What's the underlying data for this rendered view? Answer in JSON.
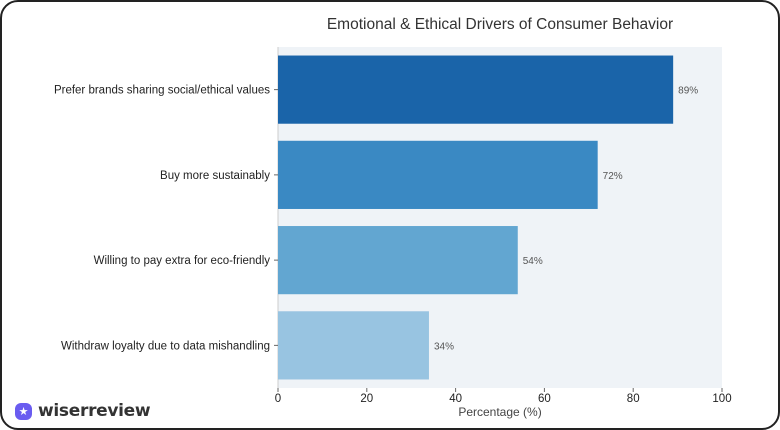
{
  "chart_data": {
    "type": "bar",
    "orientation": "horizontal",
    "title": "Emotional & Ethical Drivers of Consumer Behavior",
    "xlabel": "Percentage (%)",
    "ylabel": "",
    "xlim": [
      0,
      100
    ],
    "xticks": [
      "0",
      "20",
      "40",
      "60",
      "80",
      "100"
    ],
    "categories": [
      "Prefer brands sharing social/ethical values",
      "Buy more sustainably",
      "Willing to pay extra for eco-friendly",
      "Withdraw loyalty due to data mishandling"
    ],
    "values": [
      89,
      72,
      54,
      34
    ],
    "data_labels": [
      "89%",
      "72%",
      "54%",
      "34%"
    ],
    "colors": [
      "#1a64a9",
      "#3a89c3",
      "#62a6d1",
      "#98c4e1"
    ],
    "background": "#eff3f7",
    "grid": false
  },
  "brand": {
    "name": "wiserreview",
    "icon": "star-badge-icon",
    "color": "#6a5cf0"
  }
}
